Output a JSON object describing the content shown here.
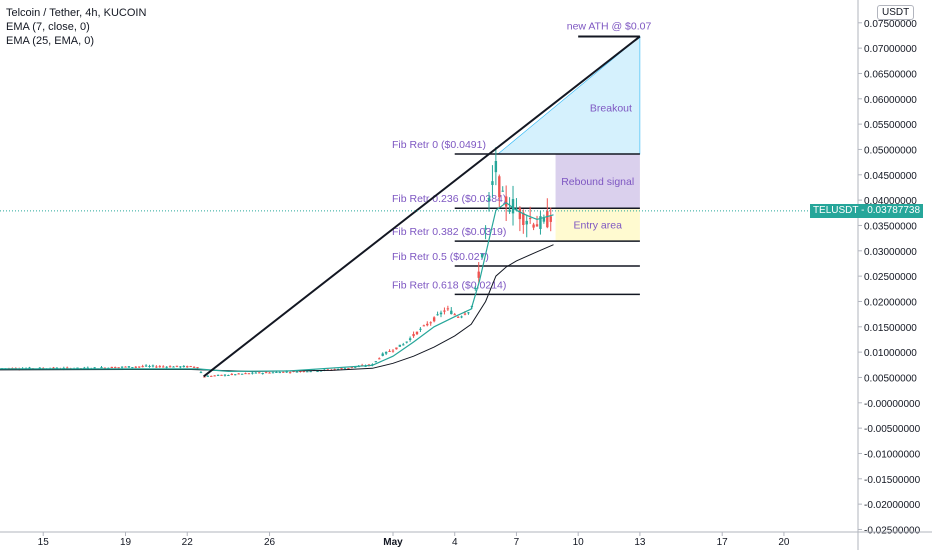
{
  "header": {
    "symbol_line": "Telcoin / Tether, 4h, KUCOIN",
    "indicators": [
      "EMA (7, close, 0)",
      "EMA (25, EMA, 0)"
    ]
  },
  "currency_button": "USDT",
  "price_tag": {
    "symbol": "TELUSDT",
    "value": "0.03787738"
  },
  "colors": {
    "up": "#26a69a",
    "down": "#ef5350",
    "ema": "#131722",
    "annotation": "#7e57c2",
    "breakout_fill": "#b3e5fc",
    "rebound_fill": "#d1c4e9",
    "entry_fill": "#fff9c4",
    "price_line": "#26a69a"
  },
  "chart_data": {
    "type": "candlestick",
    "y_ticks": [
      "0.07500000",
      "0.07000000",
      "0.06500000",
      "0.06000000",
      "0.05500000",
      "0.05000000",
      "0.04500000",
      "0.04000000",
      "0.03500000",
      "0.03000000",
      "0.02500000",
      "0.02000000",
      "0.01500000",
      "0.01000000",
      "0.00500000",
      "-0.00000000",
      "-0.00500000",
      "-0.01000000",
      "-0.01500000",
      "-0.02000000",
      "-0.02500000"
    ],
    "y_tick_values": [
      0.075,
      0.07,
      0.065,
      0.06,
      0.055,
      0.05,
      0.045,
      0.04,
      0.035,
      0.03,
      0.025,
      0.02,
      0.015,
      0.01,
      0.005,
      0,
      -0.005,
      -0.01,
      -0.015,
      -0.02,
      -0.025
    ],
    "ylim": [
      -0.0255,
      0.0795
    ],
    "x_ticks": [
      "15",
      "19",
      "22",
      "26",
      "May",
      "4",
      "7",
      "10",
      "13",
      "17",
      "20"
    ],
    "x_tick_days": [
      -16,
      -12,
      -9,
      -5,
      1,
      4,
      7,
      10,
      13,
      17,
      20
    ],
    "xlim": [
      -18.1,
      23.6
    ],
    "last_price": 0.03787738,
    "price_path": [
      [
        -18.1,
        0.0068
      ],
      [
        -14,
        0.0068
      ],
      [
        -11,
        0.0072
      ],
      [
        -8.5,
        0.0071
      ],
      [
        -8.2,
        0.0052
      ],
      [
        -6,
        0.0058
      ],
      [
        -2,
        0.0065
      ],
      [
        0,
        0.0075
      ],
      [
        0.5,
        0.0095
      ],
      [
        1.5,
        0.0115
      ],
      [
        2.2,
        0.014
      ],
      [
        3,
        0.0165
      ],
      [
        3.6,
        0.0185
      ],
      [
        4.2,
        0.017
      ],
      [
        4.8,
        0.0185
      ],
      [
        5.1,
        0.024
      ],
      [
        5.4,
        0.031
      ],
      [
        5.7,
        0.04
      ],
      [
        6,
        0.046
      ],
      [
        6.3,
        0.04
      ],
      [
        6.8,
        0.039
      ],
      [
        7.3,
        0.037
      ],
      [
        7.8,
        0.036
      ],
      [
        8.3,
        0.035
      ],
      [
        8.8,
        0.0379
      ]
    ],
    "ema_fast": [
      [
        -18.1,
        0.0067
      ],
      [
        -8.5,
        0.0067
      ],
      [
        -7,
        0.0062
      ],
      [
        -4,
        0.0063
      ],
      [
        0,
        0.0074
      ],
      [
        1,
        0.0092
      ],
      [
        2,
        0.012
      ],
      [
        3,
        0.015
      ],
      [
        4,
        0.017
      ],
      [
        4.8,
        0.0185
      ],
      [
        5.2,
        0.024
      ],
      [
        5.6,
        0.031
      ],
      [
        6,
        0.038
      ],
      [
        6.5,
        0.0395
      ],
      [
        7,
        0.038
      ],
      [
        7.5,
        0.037
      ],
      [
        8,
        0.0362
      ],
      [
        8.8,
        0.0371
      ]
    ],
    "ema_slow": [
      [
        -18.1,
        0.0065
      ],
      [
        -9,
        0.0066
      ],
      [
        -6,
        0.0062
      ],
      [
        -2,
        0.0064
      ],
      [
        0,
        0.0068
      ],
      [
        1,
        0.0078
      ],
      [
        2,
        0.0092
      ],
      [
        3,
        0.011
      ],
      [
        4,
        0.0132
      ],
      [
        4.8,
        0.0155
      ],
      [
        5.5,
        0.02
      ],
      [
        6,
        0.025
      ],
      [
        6.5,
        0.0268
      ],
      [
        7,
        0.028
      ],
      [
        8,
        0.0298
      ],
      [
        8.8,
        0.0312
      ]
    ],
    "fib_levels": [
      {
        "label": "Fib Retr 0 ($0.0491)",
        "price": 0.0491,
        "x_start": 4
      },
      {
        "label": "Fib Retr 0.236 ($0.0384)",
        "price": 0.0384,
        "x_start": 4
      },
      {
        "label": "Fib Retr 0.382 ($0.0319)",
        "price": 0.0319,
        "x_start": 4
      },
      {
        "label": "Fib Retr 0.5 ($0.027)",
        "price": 0.027,
        "x_start": 4
      },
      {
        "label": "Fib Retr 0.618 ($0.0214)",
        "price": 0.0214,
        "x_start": 4
      }
    ],
    "fib_x_end": 13,
    "trend_line": {
      "from": [
        -8.2,
        0.0052
      ],
      "to": [
        13,
        0.0723
      ]
    },
    "ath_line": {
      "label": "new ATH @ $0.07",
      "price": 0.0723,
      "x_start": 10,
      "x_end": 13
    },
    "zones": [
      {
        "label": "Breakout",
        "type": "triangle",
        "x_start": 6.1,
        "x_end": 13,
        "price_low": 0.0491,
        "price_high": 0.0723
      },
      {
        "label": "Rebound signal",
        "type": "rect",
        "x_start": 8.9,
        "x_end": 13,
        "price_low": 0.0384,
        "price_high": 0.0491
      },
      {
        "label": "Entry area",
        "type": "rect",
        "x_start": 8.9,
        "x_end": 13,
        "price_low": 0.0319,
        "price_high": 0.0384
      }
    ]
  }
}
